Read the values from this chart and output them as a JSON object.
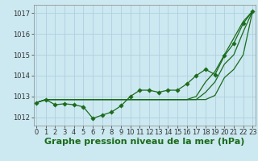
{
  "xlabel": "Graphe pression niveau de la mer (hPa)",
  "background_color": "#cce8f0",
  "grid_color": "#aaccdd",
  "line_color": "#1a6b1a",
  "x": [
    0,
    1,
    2,
    3,
    4,
    5,
    6,
    7,
    8,
    9,
    10,
    11,
    12,
    13,
    14,
    15,
    16,
    17,
    18,
    19,
    20,
    21,
    22,
    23
  ],
  "y_main": [
    1012.7,
    1012.85,
    1012.6,
    1012.65,
    1012.6,
    1012.5,
    1011.95,
    1012.1,
    1012.25,
    1012.55,
    1013.0,
    1013.3,
    1013.3,
    1013.2,
    1013.3,
    1013.3,
    1013.6,
    1014.0,
    1014.3,
    1014.05,
    1014.95,
    1015.55,
    1016.5,
    1017.1
  ],
  "y_line2": [
    1012.7,
    1012.85,
    1012.85,
    1012.85,
    1012.85,
    1012.85,
    1012.85,
    1012.85,
    1012.85,
    1012.85,
    1012.85,
    1012.85,
    1012.85,
    1012.85,
    1012.85,
    1012.85,
    1012.85,
    1012.85,
    1012.85,
    1013.05,
    1013.9,
    1014.3,
    1015.0,
    1017.1
  ],
  "y_line3": [
    1012.7,
    1012.85,
    1012.85,
    1012.85,
    1012.85,
    1012.85,
    1012.85,
    1012.85,
    1012.85,
    1012.85,
    1012.85,
    1012.85,
    1012.85,
    1012.85,
    1012.85,
    1012.85,
    1012.85,
    1012.85,
    1013.2,
    1013.7,
    1014.55,
    1015.0,
    1016.1,
    1017.1
  ],
  "y_line4": [
    1012.7,
    1012.85,
    1012.85,
    1012.85,
    1012.85,
    1012.85,
    1012.85,
    1012.85,
    1012.85,
    1012.85,
    1012.85,
    1012.85,
    1012.85,
    1012.85,
    1012.85,
    1012.85,
    1012.85,
    1013.0,
    1013.7,
    1014.2,
    1015.0,
    1015.8,
    1016.6,
    1017.1
  ],
  "ylim": [
    1011.6,
    1017.4
  ],
  "yticks": [
    1012,
    1013,
    1014,
    1015,
    1016,
    1017
  ],
  "xticks": [
    0,
    1,
    2,
    3,
    4,
    5,
    6,
    7,
    8,
    9,
    10,
    11,
    12,
    13,
    14,
    15,
    16,
    17,
    18,
    19,
    20,
    21,
    22,
    23
  ],
  "xlim": [
    -0.3,
    23.3
  ],
  "tick_fontsize": 6.0,
  "xlabel_fontsize": 8.0,
  "line_width": 0.9,
  "marker_size": 2.8
}
